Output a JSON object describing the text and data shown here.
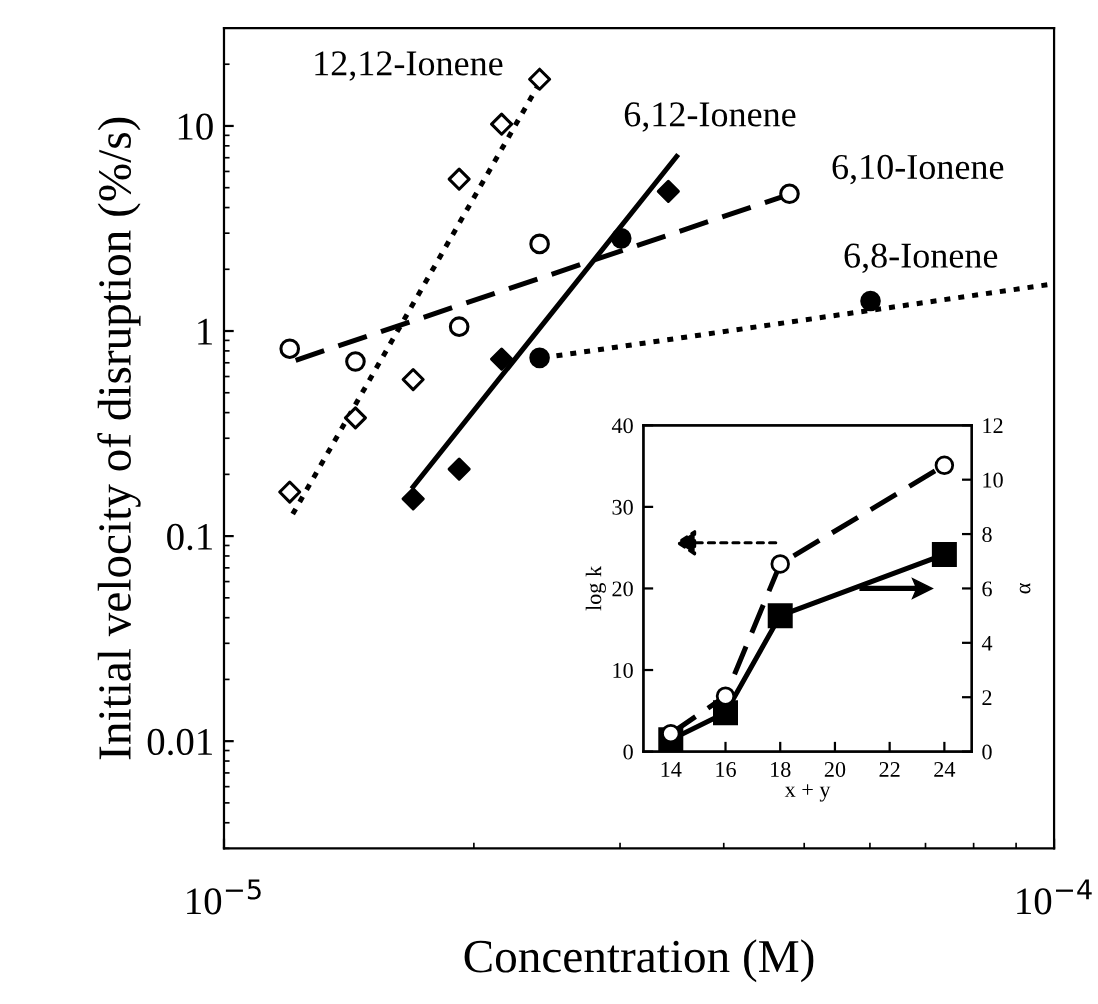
{
  "chart_data": [
    {
      "type": "scatter",
      "xlabel": "Concentration (M)",
      "ylabel": "Initial velocity of disruption (%/s)",
      "log": "xy",
      "xlim": [
        1e-05,
        0.0001
      ],
      "xticks": [
        {
          "value": 1e-05,
          "label": "10$^{−5}$"
        },
        {
          "value": 0.0001,
          "label": "10$^{−4}$"
        }
      ],
      "ylim": [
        0.003,
        30
      ],
      "yticks": [
        0.01,
        0.1,
        1,
        10
      ],
      "grid": false,
      "legend": false,
      "series": [
        {
          "type": "scatter",
          "marker": "diamond",
          "color": "#ffffff",
          "x": [
            1.2e-05,
            1.44e-05,
            1.69e-05,
            1.92e-05,
            2.16e-05,
            2.4e-05
          ],
          "values": [
            0.164,
            0.377,
            0.58,
            5.5,
            10.2,
            16.9
          ]
        },
        {
          "type": "scatter",
          "marker": "diamond",
          "color": "#000000",
          "x": [
            1.69e-05,
            1.92e-05,
            2.16e-05,
            3.43e-05
          ],
          "values": [
            0.152,
            0.212,
            0.73,
            4.8
          ]
        },
        {
          "type": "scatter",
          "marker": "circle",
          "color": "#ffffff",
          "x": [
            1.2e-05,
            1.44e-05,
            1.92e-05,
            2.4e-05,
            4.8e-05
          ],
          "values": [
            0.82,
            0.71,
            1.05,
            2.66,
            4.67
          ]
        },
        {
          "type": "scatter",
          "marker": "circle",
          "color": "#000000",
          "x": [
            2.4e-05,
            3.01e-05,
            6.01e-05
          ],
          "values": [
            0.74,
            2.83,
            1.4
          ]
        },
        {
          "type": "line",
          "name": "12,12-Ionene",
          "marker": "none",
          "line_style": "dotted",
          "color": "#000000",
          "x": [
            1.21e-05,
            2.42e-05
          ],
          "values": [
            0.128,
            17.2
          ]
        },
        {
          "type": "line",
          "name": "6,12-Ionene",
          "marker": "none",
          "line_style": "solid",
          "color": "#000000",
          "x": [
            1.69e-05,
            3.51e-05
          ],
          "values": [
            0.174,
            7.1
          ]
        },
        {
          "type": "line",
          "name": "6,10-Ionene",
          "marker": "none",
          "line_style": "dashed",
          "color": "#000000",
          "x": [
            1.22e-05,
            4.77e-05
          ],
          "values": [
            0.72,
            4.6
          ]
        },
        {
          "type": "line",
          "name": "6,8-Ionene",
          "marker": "none",
          "line_style": "dotted",
          "color": "#000000",
          "x": [
            2.42e-05,
            0.0001
          ],
          "values": [
            0.74,
            1.7
          ]
        }
      ]
    },
    {
      "type": "line",
      "xlabel": "x + y",
      "ylabel": "log k",
      "y2label": "α",
      "x": [
        14,
        16,
        18,
        24
      ],
      "xlim": [
        13,
        25
      ],
      "xticks": [
        14,
        16,
        18,
        20,
        22,
        24
      ],
      "ylim": [
        0,
        40
      ],
      "yticks": [
        0,
        10,
        20,
        30,
        40
      ],
      "y2lim": [
        0,
        12
      ],
      "y2ticks": [
        0,
        2,
        4,
        6,
        8,
        10,
        12
      ],
      "grid": false,
      "legend": false,
      "series": [
        {
          "axis": "y",
          "marker": "circle",
          "line_style": "dashed",
          "color": "#ffffff",
          "values": [
            2.2,
            6.8,
            23.0,
            35.1
          ]
        },
        {
          "axis": "y2",
          "marker": "square",
          "line_style": "solid",
          "color": "#000000",
          "values": [
            0.44,
            1.43,
            5.0,
            7.25
          ]
        }
      ]
    }
  ]
}
